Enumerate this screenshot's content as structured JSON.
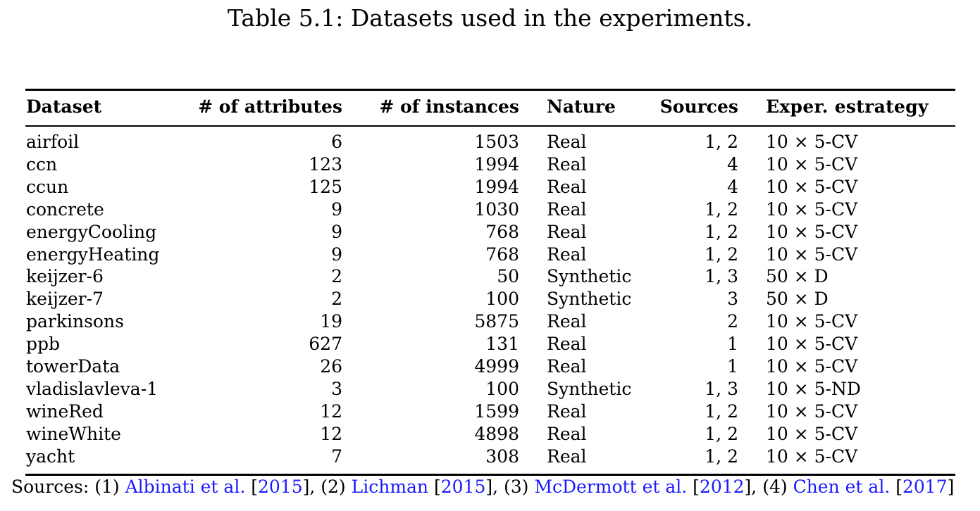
{
  "caption": "Table 5.1: Datasets used in the experiments.",
  "table": {
    "headers": [
      "Dataset",
      "# of attributes",
      "# of instances",
      "Nature",
      "Sources",
      "Exper. estrategy"
    ],
    "rows": [
      [
        "airfoil",
        "6",
        "1503",
        "Real",
        "1, 2",
        "10 × 5-CV"
      ],
      [
        "ccn",
        "123",
        "1994",
        "Real",
        "4",
        "10 × 5-CV"
      ],
      [
        "ccun",
        "125",
        "1994",
        "Real",
        "4",
        "10 × 5-CV"
      ],
      [
        "concrete",
        "9",
        "1030",
        "Real",
        "1, 2",
        "10 × 5-CV"
      ],
      [
        "energyCooling",
        "9",
        "768",
        "Real",
        "1, 2",
        "10 × 5-CV"
      ],
      [
        "energyHeating",
        "9",
        "768",
        "Real",
        "1, 2",
        "10 × 5-CV"
      ],
      [
        "keijzer-6",
        "2",
        "50",
        "Synthetic",
        "1, 3",
        "50 × D"
      ],
      [
        "keijzer-7",
        "2",
        "100",
        "Synthetic",
        "3",
        "50 × D"
      ],
      [
        "parkinsons",
        "19",
        "5875",
        "Real",
        "2",
        "10 × 5-CV"
      ],
      [
        "ppb",
        "627",
        "131",
        "Real",
        "1",
        "10 × 5-CV"
      ],
      [
        "towerData",
        "26",
        "4999",
        "Real",
        "1",
        "10 × 5-CV"
      ],
      [
        "vladislavleva-1",
        "3",
        "100",
        "Synthetic",
        "1, 3",
        "10 × 5-ND"
      ],
      [
        "wineRed",
        "12",
        "1599",
        "Real",
        "1, 2",
        "10 × 5-CV"
      ],
      [
        "wineWhite",
        "12",
        "4898",
        "Real",
        "1, 2",
        "10 × 5-CV"
      ],
      [
        "yacht",
        "7",
        "308",
        "Real",
        "1, 2",
        "10 × 5-CV"
      ]
    ]
  },
  "sources": {
    "prefix": "Sources: (1) ",
    "s1_author": "Albinati et al.",
    "s1_year": "2015",
    "sep2": "], (2) ",
    "s2_author": "Lichman",
    "s2_year": "2015",
    "sep3": "], (3) ",
    "s3_author": "McDermott et al.",
    "s3_year": "2012",
    "sep4": "], (4) ",
    "s4_author": "Chen et al.",
    "s4_year": "2017",
    "suffix": "]"
  }
}
